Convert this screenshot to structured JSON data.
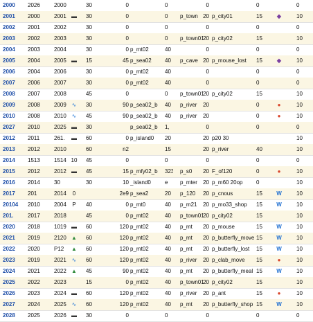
{
  "rows": [
    {
      "id": "2000",
      "a": "2026",
      "b": "2000",
      "icon": "",
      "v1": "30",
      "v2": "0",
      "map": "",
      "v3": "0",
      "area": "",
      "v4": "0",
      "ev": "",
      "v5": "0",
      "emblem": "",
      "last": "0"
    },
    {
      "id": "2001",
      "a": "2000",
      "b": "2001",
      "icon": "ship",
      "v1": "30",
      "v2": "0",
      "map": "",
      "v3": "0",
      "area": "p_town",
      "v4": "20",
      "ev": "p_city01",
      "v5": "15",
      "emblem": "shield",
      "last": "10"
    },
    {
      "id": "2002",
      "a": "2001",
      "b": "2002",
      "icon": "",
      "v1": "30",
      "v2": "0",
      "map": "",
      "v3": "0",
      "area": "",
      "v4": "0",
      "ev": "",
      "v5": "0",
      "emblem": "",
      "last": "0"
    },
    {
      "id": "2003",
      "a": "2002",
      "b": "2003",
      "icon": "",
      "v1": "30",
      "v2": "0",
      "map": "",
      "v3": "0",
      "area": "p_town01",
      "v4": "20",
      "ev": "p_city02",
      "v5": "15",
      "emblem": "",
      "last": "10"
    },
    {
      "id": "2004",
      "a": "2003",
      "b": "2004",
      "icon": "",
      "v1": "30",
      "v2": "0",
      "map": "p_mt02",
      "v3": "40",
      "area": "",
      "v4": "0",
      "ev": "",
      "v5": "0",
      "emblem": "",
      "last": "0"
    },
    {
      "id": "2005",
      "a": "2004",
      "b": "2005",
      "icon": "ship",
      "v1": "15",
      "v2": "45",
      "map": "p_sea02",
      "v3": "40",
      "area": "p_cave",
      "v4": "20",
      "ev": "p_mouse_lost",
      "v5": "15",
      "emblem": "shield",
      "last": "10"
    },
    {
      "id": "2006",
      "a": "2004",
      "b": "2006",
      "icon": "",
      "v1": "30",
      "v2": "0",
      "map": "p_mt02",
      "v3": "40",
      "area": "",
      "v4": "0",
      "ev": "",
      "v5": "0",
      "emblem": "",
      "last": "0"
    },
    {
      "id": "2007",
      "a": "2006",
      "b": "2007",
      "icon": "",
      "v1": "30",
      "v2": "0",
      "map": "p_mt02",
      "v3": "40",
      "area": "",
      "v4": "0",
      "ev": "",
      "v5": "0",
      "emblem": "",
      "last": "0"
    },
    {
      "id": "2008",
      "a": "2007",
      "b": "2008",
      "icon": "",
      "v1": "45",
      "v2": "0",
      "map": "",
      "v3": "0",
      "area": "p_town01",
      "v4": "20",
      "ev": "p_city02",
      "v5": "15",
      "emblem": "",
      "last": "10"
    },
    {
      "id": "2009",
      "a": "2008",
      "b": "2009",
      "icon": "wave",
      "v1": "30",
      "v2": "90",
      "map": "p_sea02_b",
      "v3": "40",
      "area": "p_river",
      "v4": "20",
      "ev": "",
      "v5": "0",
      "emblem": "crab",
      "last": "10"
    },
    {
      "id": "2010",
      "a": "2008",
      "b": "2010",
      "icon": "wave",
      "v1": "45",
      "v2": "90",
      "map": "p_sea02_b",
      "v3": "40",
      "area": "p_river",
      "v4": "20",
      "ev": "",
      "v5": "0",
      "emblem": "crab",
      "last": "10"
    },
    {
      "id": "2027",
      "a": "2010",
      "b": "2025",
      "icon": "ship",
      "v1": "30",
      "v2": "",
      "map": "p_sea02_b",
      "v3": "1,",
      "area": "",
      "v4": "0",
      "ev": "",
      "v5": "0",
      "emblem": "",
      "last": "0"
    },
    {
      "id": "2012",
      "a": "2011",
      "b": "261.",
      "icon": "ship",
      "v1": "60",
      "v2": "0",
      "map": "p_island0",
      "v3": "20",
      "area": "",
      "v4": "20",
      "ev": "p20  30",
      "v5": "",
      "emblem": "",
      "last": "10"
    },
    {
      "id": "2013",
      "a": "2012",
      "b": "2010",
      "icon": "",
      "v1": "60",
      "v2": "n2",
      "map": "",
      "v3": "15",
      "area": "",
      "v4": "20",
      "ev": "p_river",
      "v5": "40",
      "emblem": "",
      "last": "10"
    },
    {
      "id": "2014",
      "a": "1513",
      "b": "1514",
      "icon": "10",
      "v1": "45",
      "v2": "0",
      "map": "",
      "v3": "0",
      "area": "",
      "v4": "0",
      "ev": "",
      "v5": "0",
      "emblem": "",
      "last": "0"
    },
    {
      "id": "2015",
      "a": "2012",
      "b": "2012",
      "icon": "ship",
      "v1": "45",
      "v2": "15",
      "map": "p_mfy02_b",
      "v3": "323",
      "area": "p_s0",
      "v4": "20",
      "ev": "F_of120",
      "v5": "0",
      "emblem": "crab",
      "last": "10"
    },
    {
      "id": "2016",
      "a": "2014",
      "b": "30",
      "icon": "",
      "v1": "30",
      "v2": "10",
      "map": "_island0",
      "v3": "e",
      "area": "p_mter",
      "v4": "20",
      "ev": "p_m60  20op",
      "v5": "0",
      "emblem": "",
      "last": "10"
    },
    {
      "id": "2017",
      "a": "201",
      "b": "2014",
      "icon": "0",
      "v1": "",
      "v2": "2e9",
      "map": "p_sea2",
      "v3": "20",
      "area": "p_120",
      "v4": "20",
      "ev": "p_cnous",
      "v5": "15",
      "emblem": "w",
      "last": "10"
    },
    {
      "id": "20104",
      "a": "2010",
      "b": "2004",
      "icon": "P",
      "v1": "40",
      "v2": "0",
      "map": "p_mt0",
      "v3": "40",
      "area": "p_m21",
      "v4": "20",
      "ev": "p_mo33_shop",
      "v5": "15",
      "emblem": "w",
      "last": "10"
    },
    {
      "id": "201.",
      "a": "2017",
      "b": "2018",
      "icon": "",
      "v1": "45",
      "v2": "0",
      "map": "p_mt02",
      "v3": "40",
      "area": "p_town01",
      "v4": "20",
      "ev": "p_city02",
      "v5": "15",
      "emblem": "",
      "last": "10"
    },
    {
      "id": "2020",
      "a": "2018",
      "b": "1019",
      "icon": "ship",
      "v1": "60",
      "v2": "120",
      "map": "p_mt02",
      "v3": "40",
      "area": "p_mt",
      "v4": "20",
      "ev": "p_mouse",
      "v5": "15",
      "emblem": "w",
      "last": "10"
    },
    {
      "id": "2021",
      "a": "2019",
      "b": "2120",
      "icon": "mount",
      "v1": "60",
      "v2": "120",
      "map": "p_mt02",
      "v3": "40",
      "area": "p_mt",
      "v4": "20",
      "ev": "p_butterfly_move",
      "v5": "15",
      "emblem": "w",
      "last": "10"
    },
    {
      "id": "2022",
      "a": "2020",
      "b": "P12",
      "icon": "mount",
      "v1": "60",
      "v2": "120",
      "map": "p_mt02",
      "v3": "40",
      "area": "p_mt",
      "v4": "20",
      "ev": "p_butterfly_lost",
      "v5": "15",
      "emblem": "w",
      "last": "10"
    },
    {
      "id": "2023",
      "a": "2019",
      "b": "2021",
      "icon": "wave",
      "v1": "60",
      "v2": "120",
      "map": "p_mt02",
      "v3": "40",
      "area": "p_river",
      "v4": "20",
      "ev": "p_clab_move",
      "v5": "15",
      "emblem": "crab",
      "last": "10"
    },
    {
      "id": "2024",
      "a": "2021",
      "b": "2022",
      "icon": "mount",
      "v1": "45",
      "v2": "90",
      "map": "p_mt02",
      "v3": "40",
      "area": "p_mt",
      "v4": "20",
      "ev": "p_butterfly_meal",
      "v5": "15",
      "emblem": "w",
      "last": "10"
    },
    {
      "id": "2025",
      "a": "2022",
      "b": "2023",
      "icon": "",
      "v1": "15",
      "v2": "0",
      "map": "p_mt02",
      "v3": "40",
      "area": "p_town01",
      "v4": "20",
      "ev": "p_city02",
      "v5": "15",
      "emblem": "",
      "last": "10"
    },
    {
      "id": "2026",
      "a": "2023",
      "b": "2024",
      "icon": "ship",
      "v1": "60",
      "v2": "120",
      "map": "p_mt02",
      "v3": "40",
      "area": "p_river",
      "v4": "20",
      "ev": "p_ant",
      "v5": "15",
      "emblem": "crab",
      "last": "10"
    },
    {
      "id": "2027",
      "a": "2024",
      "b": "2025",
      "icon": "wave",
      "v1": "60",
      "v2": "120",
      "map": "p_mt02",
      "v3": "40",
      "area": "p_mt",
      "v4": "20",
      "ev": "p_butterfly_shop",
      "v5": "15",
      "emblem": "w",
      "last": "10"
    },
    {
      "id": "2028",
      "a": "2025",
      "b": "2026",
      "icon": "ship",
      "v1": "30",
      "v2": "0",
      "map": "",
      "v3": "0",
      "area": "",
      "v4": "0",
      "ev": "",
      "v5": "0",
      "emblem": "",
      "last": "0"
    }
  ]
}
